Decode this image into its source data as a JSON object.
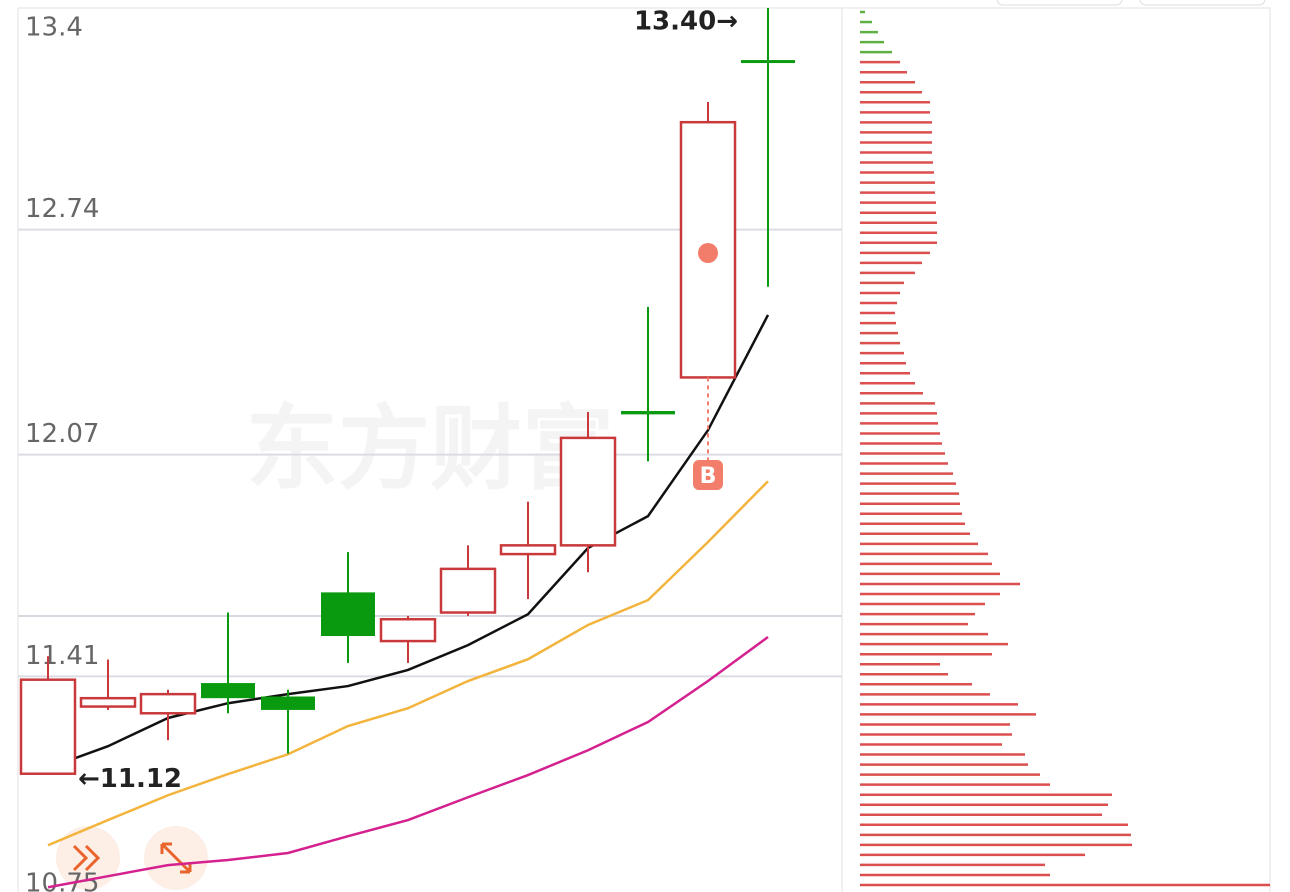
{
  "chart_data": {
    "type": "candlestick",
    "ylim": [
      10.75,
      13.4
    ],
    "yticks": [
      13.4,
      12.74,
      12.07,
      11.41,
      10.75
    ],
    "open": [
      11.12,
      11.32,
      11.3,
      11.39,
      11.35,
      11.66,
      11.515,
      11.6,
      11.774,
      11.8,
      12.2,
      12.3,
      13.245
    ],
    "high": [
      11.47,
      11.46,
      11.37,
      11.6,
      11.37,
      11.78,
      11.59,
      11.8,
      11.93,
      12.197,
      12.51,
      13.12,
      13.4
    ],
    "low": [
      11.12,
      11.31,
      11.22,
      11.3,
      11.18,
      11.45,
      11.45,
      11.59,
      11.64,
      11.72,
      12.05,
      12.3,
      12.57
    ],
    "close": [
      11.4,
      11.345,
      11.357,
      11.345,
      11.31,
      11.53,
      11.58,
      11.73,
      11.8,
      12.12,
      12.19,
      13.06,
      13.24
    ],
    "up_color": "#c9393b",
    "down_color": "#0a9a0f",
    "series": [
      {
        "color": "#111111",
        "values": [
          11.137,
          11.202,
          11.286,
          11.33,
          11.357,
          11.381,
          11.429,
          11.503,
          11.595,
          11.792,
          11.887,
          12.143,
          12.486
        ]
      },
      {
        "color": "#f2b43c",
        "values": [
          10.907,
          10.982,
          11.056,
          11.119,
          11.178,
          11.262,
          11.315,
          11.396,
          11.461,
          11.563,
          11.637,
          11.81,
          11.991
        ]
      },
      {
        "color": "#d4218f",
        "values": [
          10.782,
          10.815,
          10.848,
          10.863,
          10.884,
          10.934,
          10.982,
          11.05,
          11.116,
          11.19,
          11.274,
          11.396,
          11.527
        ]
      }
    ],
    "high_label": "13.40→",
    "low_label": "←11.12",
    "buy_marker": "B",
    "watermark": "东方财富",
    "volume_profile": {
      "green_count": 5,
      "green": "#5fb043",
      "red": "#dc4f4f",
      "values": [
        5,
        12,
        18,
        24,
        32,
        40,
        47,
        55,
        62,
        70,
        70,
        72,
        72,
        72,
        72,
        73,
        74,
        75,
        75,
        76,
        76,
        77,
        77,
        77,
        70,
        62,
        55,
        44,
        40,
        37,
        35,
        36,
        38,
        40,
        44,
        46,
        50,
        55,
        63,
        75,
        77,
        78,
        80,
        82,
        85,
        88,
        93,
        96,
        99,
        100,
        102,
        105,
        110,
        118,
        128,
        132,
        140,
        160,
        140,
        125,
        115,
        108,
        128,
        148,
        132,
        80,
        88,
        112,
        130,
        158,
        176,
        150,
        152,
        142,
        165,
        168,
        180,
        190,
        252,
        248,
        242,
        268,
        271,
        272,
        225,
        185,
        190,
        410
      ]
    }
  }
}
